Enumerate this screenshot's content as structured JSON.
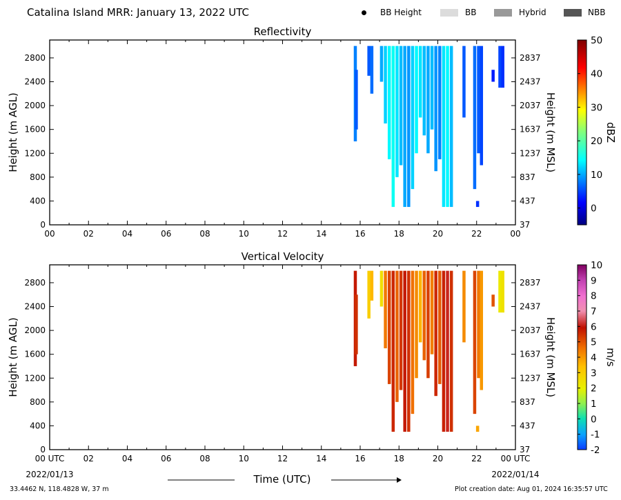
{
  "header": {
    "title": "Catalina Island MRR:  January 13, 2022 UTC",
    "legend": [
      {
        "label": "BB Height",
        "kind": "dot",
        "color": "#000000"
      },
      {
        "label": "BB",
        "kind": "swatch",
        "color": "#dcdcdc"
      },
      {
        "label": "Hybrid",
        "kind": "swatch",
        "color": "#999999"
      },
      {
        "label": "NBB",
        "kind": "swatch",
        "color": "#555555"
      }
    ]
  },
  "footer": {
    "location": "33.4462 N, 118.4828 W, 37 m",
    "created": "Plot creation date: Aug 01, 2024 16:35:57 UTC",
    "start_date": "2022/01/13",
    "end_date": "2022/01/14",
    "xlabel": "Time (UTC)"
  },
  "chart_data": [
    {
      "type": "heatmap",
      "title": "Reflectivity",
      "xlabel": "",
      "ylabel": "Height (m AGL)",
      "ylabel_right": "Height (m MSL)",
      "x_ticks": [
        "00",
        "02",
        "04",
        "06",
        "08",
        "10",
        "12",
        "14",
        "16",
        "18",
        "20",
        "22",
        "00"
      ],
      "y_ticks_left": [
        0,
        400,
        800,
        1200,
        1600,
        2000,
        2400,
        2800
      ],
      "y_ticks_right": [
        37,
        437,
        837,
        1237,
        1637,
        2037,
        2437,
        2837
      ],
      "xlim": [
        0,
        24
      ],
      "ylim": [
        0,
        3100
      ],
      "colorbar": {
        "label": "dBZ",
        "range": [
          -5,
          50
        ],
        "ticks": [
          0,
          10,
          20,
          30,
          40,
          50
        ],
        "colormap": "jet"
      },
      "columns": [
        {
          "t": 15.75,
          "ybot": 1400,
          "ytop": 3000,
          "value": 8
        },
        {
          "t": 15.8,
          "ybot": 1600,
          "ytop": 2600,
          "value": 6
        },
        {
          "t": 16.45,
          "ybot": 2500,
          "ytop": 3000,
          "value": 6
        },
        {
          "t": 16.6,
          "ybot": 2200,
          "ytop": 3000,
          "value": 7
        },
        {
          "t": 17.1,
          "ybot": 2400,
          "ytop": 3000,
          "value": 10
        },
        {
          "t": 17.3,
          "ybot": 1700,
          "ytop": 3000,
          "value": 12
        },
        {
          "t": 17.5,
          "ybot": 1100,
          "ytop": 3000,
          "value": 14
        },
        {
          "t": 17.7,
          "ybot": 300,
          "ytop": 3000,
          "value": 15
        },
        {
          "t": 17.9,
          "ybot": 800,
          "ytop": 3000,
          "value": 13
        },
        {
          "t": 18.1,
          "ybot": 1000,
          "ytop": 3000,
          "value": 11
        },
        {
          "t": 18.3,
          "ybot": 300,
          "ytop": 3000,
          "value": 10
        },
        {
          "t": 18.5,
          "ybot": 300,
          "ytop": 3000,
          "value": 9
        },
        {
          "t": 18.7,
          "ybot": 600,
          "ytop": 3000,
          "value": 12
        },
        {
          "t": 18.9,
          "ybot": 1200,
          "ytop": 3000,
          "value": 14
        },
        {
          "t": 19.1,
          "ybot": 1800,
          "ytop": 3000,
          "value": 13
        },
        {
          "t": 19.3,
          "ybot": 1500,
          "ytop": 3000,
          "value": 11
        },
        {
          "t": 19.5,
          "ybot": 1200,
          "ytop": 3000,
          "value": 10
        },
        {
          "t": 19.7,
          "ybot": 1600,
          "ytop": 3000,
          "value": 11
        },
        {
          "t": 19.9,
          "ybot": 900,
          "ytop": 3000,
          "value": 9
        },
        {
          "t": 20.1,
          "ybot": 1100,
          "ytop": 3000,
          "value": 8
        },
        {
          "t": 20.3,
          "ybot": 300,
          "ytop": 3000,
          "value": 13
        },
        {
          "t": 20.5,
          "ybot": 300,
          "ytop": 3000,
          "value": 14
        },
        {
          "t": 20.7,
          "ybot": 300,
          "ytop": 3000,
          "value": 11
        },
        {
          "t": 21.35,
          "ybot": 1800,
          "ytop": 3000,
          "value": 6
        },
        {
          "t": 21.9,
          "ybot": 600,
          "ytop": 3000,
          "value": 7
        },
        {
          "t": 22.1,
          "ybot": 1200,
          "ytop": 3000,
          "value": 6
        },
        {
          "t": 22.25,
          "ybot": 1000,
          "ytop": 3000,
          "value": 5
        },
        {
          "t": 22.05,
          "ybot": 300,
          "ytop": 400,
          "value": 4
        },
        {
          "t": 22.85,
          "ybot": 2400,
          "ytop": 2600,
          "value": 3
        },
        {
          "t": 23.2,
          "ybot": 2300,
          "ytop": 3000,
          "value": 5
        },
        {
          "t": 23.35,
          "ybot": 2300,
          "ytop": 3000,
          "value": 4
        }
      ]
    },
    {
      "type": "heatmap",
      "title": "Vertical Velocity",
      "xlabel": "",
      "ylabel": "Height (m AGL)",
      "ylabel_right": "Height (m MSL)",
      "x_ticks": [
        "00 UTC",
        "02",
        "04",
        "06",
        "08",
        "10",
        "12",
        "14",
        "16",
        "18",
        "20",
        "22",
        "00 UTC"
      ],
      "y_ticks_left": [
        0,
        400,
        800,
        1200,
        1600,
        2000,
        2400,
        2800
      ],
      "y_ticks_right": [
        37,
        437,
        837,
        1237,
        1637,
        2037,
        2437,
        2837
      ],
      "xlim": [
        0,
        24
      ],
      "ylim": [
        0,
        3100
      ],
      "colorbar": {
        "label": "m/s",
        "range": [
          -2,
          10
        ],
        "ticks": [
          -2,
          -1,
          0,
          1,
          2,
          3,
          4,
          5,
          6,
          7,
          8,
          9,
          10
        ],
        "colormap": "velocity"
      },
      "columns": [
        {
          "t": 15.75,
          "ybot": 1400,
          "ytop": 3000,
          "value": 5.8
        },
        {
          "t": 15.8,
          "ybot": 1600,
          "ytop": 2600,
          "value": 5.5
        },
        {
          "t": 16.45,
          "ybot": 2200,
          "ytop": 3000,
          "value": 3
        },
        {
          "t": 16.6,
          "ybot": 2500,
          "ytop": 3000,
          "value": 3.5
        },
        {
          "t": 17.1,
          "ybot": 2400,
          "ytop": 3000,
          "value": 2.5
        },
        {
          "t": 17.3,
          "ybot": 1700,
          "ytop": 3000,
          "value": 4.5
        },
        {
          "t": 17.5,
          "ybot": 1100,
          "ytop": 3000,
          "value": 5.2
        },
        {
          "t": 17.7,
          "ybot": 300,
          "ytop": 3000,
          "value": 5.6
        },
        {
          "t": 17.9,
          "ybot": 800,
          "ytop": 3000,
          "value": 4.8
        },
        {
          "t": 18.1,
          "ybot": 1000,
          "ytop": 3000,
          "value": 5.4
        },
        {
          "t": 18.3,
          "ybot": 300,
          "ytop": 3000,
          "value": 5.8
        },
        {
          "t": 18.5,
          "ybot": 300,
          "ytop": 3000,
          "value": 5.5
        },
        {
          "t": 18.7,
          "ybot": 600,
          "ytop": 3000,
          "value": 4.6
        },
        {
          "t": 18.9,
          "ybot": 1200,
          "ytop": 3000,
          "value": 4.2
        },
        {
          "t": 19.1,
          "ybot": 1800,
          "ytop": 3000,
          "value": 3.6
        },
        {
          "t": 19.3,
          "ybot": 1500,
          "ytop": 3000,
          "value": 4.8
        },
        {
          "t": 19.5,
          "ybot": 1200,
          "ytop": 3000,
          "value": 5.3
        },
        {
          "t": 19.7,
          "ybot": 1600,
          "ytop": 3000,
          "value": 4.4
        },
        {
          "t": 19.9,
          "ybot": 900,
          "ytop": 3000,
          "value": 5.6
        },
        {
          "t": 20.1,
          "ybot": 1100,
          "ytop": 3000,
          "value": 4.9
        },
        {
          "t": 20.3,
          "ybot": 300,
          "ytop": 3000,
          "value": 5.7
        },
        {
          "t": 20.5,
          "ybot": 300,
          "ytop": 3000,
          "value": 6.1
        },
        {
          "t": 20.7,
          "ybot": 300,
          "ytop": 3000,
          "value": 5.5
        },
        {
          "t": 21.35,
          "ybot": 1800,
          "ytop": 3000,
          "value": 4.2
        },
        {
          "t": 21.9,
          "ybot": 600,
          "ytop": 3000,
          "value": 5.2
        },
        {
          "t": 22.1,
          "ybot": 1200,
          "ytop": 3000,
          "value": 4.5
        },
        {
          "t": 22.25,
          "ybot": 1000,
          "ytop": 3000,
          "value": 4.0
        },
        {
          "t": 22.05,
          "ybot": 300,
          "ytop": 400,
          "value": 3.8
        },
        {
          "t": 22.85,
          "ybot": 2400,
          "ytop": 2600,
          "value": 5.0
        },
        {
          "t": 23.2,
          "ybot": 2300,
          "ytop": 3000,
          "value": 2.2
        },
        {
          "t": 23.35,
          "ybot": 2300,
          "ytop": 3000,
          "value": 2.4
        }
      ]
    }
  ]
}
